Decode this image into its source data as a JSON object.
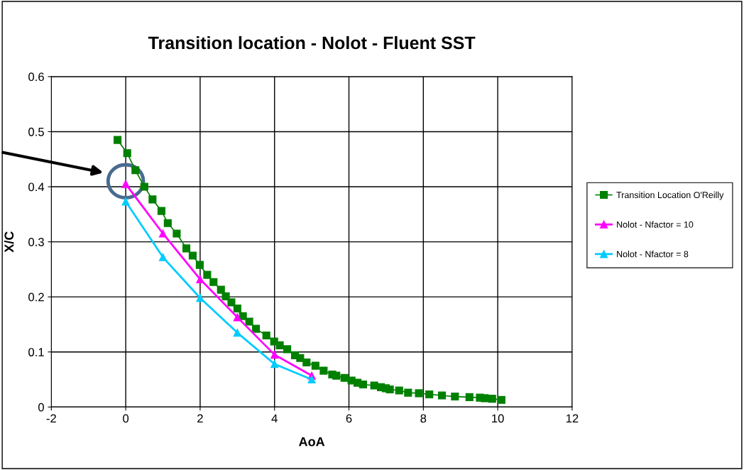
{
  "chart_data": {
    "type": "line",
    "title": "Transition location - Nolot - Fluent SST",
    "xlabel": "AoA",
    "ylabel": "X/C",
    "xlim": [
      -2,
      12
    ],
    "xticks": [
      -2,
      0,
      2,
      4,
      6,
      8,
      10,
      12
    ],
    "ylim": [
      0,
      0.6
    ],
    "yticks": [
      0,
      0.1,
      0.2,
      0.3,
      0.4,
      0.5,
      0.6
    ],
    "grid": true,
    "legend": "right",
    "series": [
      {
        "name": "Transition Location O'Reilly",
        "color": "#008000",
        "marker": "square",
        "x": [
          -0.22,
          0.04,
          0.26,
          0.5,
          0.72,
          0.96,
          1.13,
          1.37,
          1.63,
          1.8,
          1.99,
          2.19,
          2.36,
          2.56,
          2.69,
          2.84,
          3.0,
          3.15,
          3.32,
          3.5,
          3.78,
          3.99,
          4.14,
          4.34,
          4.55,
          4.69,
          4.86,
          5.1,
          5.32,
          5.55,
          5.66,
          5.88,
          6.07,
          6.23,
          6.38,
          6.68,
          6.86,
          6.99,
          7.1,
          7.35,
          7.59,
          7.88,
          8.16,
          8.5,
          8.85,
          9.24,
          9.52,
          9.65,
          9.85,
          10.1
        ],
        "values": [
          0.485,
          0.461,
          0.43,
          0.4,
          0.377,
          0.356,
          0.334,
          0.315,
          0.288,
          0.275,
          0.258,
          0.24,
          0.227,
          0.213,
          0.201,
          0.19,
          0.179,
          0.165,
          0.155,
          0.142,
          0.13,
          0.119,
          0.112,
          0.105,
          0.094,
          0.089,
          0.081,
          0.075,
          0.066,
          0.059,
          0.057,
          0.053,
          0.048,
          0.044,
          0.041,
          0.039,
          0.036,
          0.034,
          0.032,
          0.03,
          0.026,
          0.025,
          0.023,
          0.021,
          0.019,
          0.018,
          0.017,
          0.016,
          0.015,
          0.013
        ]
      },
      {
        "name": "Nolot - Nfactor = 10",
        "color": "#ff00ff",
        "marker": "triangle",
        "x": [
          0,
          1,
          2,
          3,
          4,
          5
        ],
        "values": [
          0.405,
          0.315,
          0.232,
          0.163,
          0.095,
          0.057
        ]
      },
      {
        "name": "Nolot - Nfactor = 8",
        "color": "#00ccff",
        "marker": "triangle",
        "x": [
          0,
          1,
          2,
          3,
          4,
          5
        ],
        "values": [
          0.373,
          0.272,
          0.198,
          0.135,
          0.078,
          0.05
        ]
      }
    ]
  }
}
